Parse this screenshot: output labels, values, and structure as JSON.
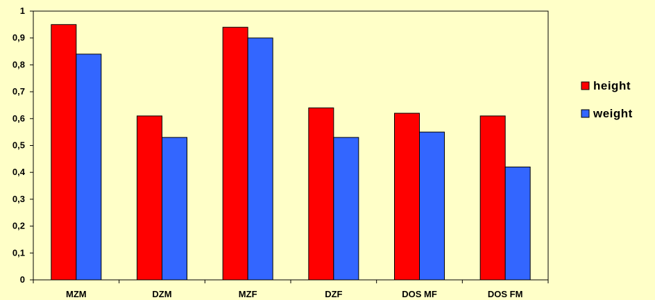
{
  "chart_data": {
    "type": "bar",
    "categories": [
      "MZM",
      "DZM",
      "MZF",
      "DZF",
      "DOS MF",
      "DOS FM"
    ],
    "series": [
      {
        "name": "height",
        "values": [
          0.95,
          0.61,
          0.94,
          0.64,
          0.62,
          0.61
        ],
        "color": "#FF0000"
      },
      {
        "name": "weight",
        "values": [
          0.84,
          0.53,
          0.9,
          0.53,
          0.55,
          0.42
        ],
        "color": "#3366FF"
      }
    ],
    "ylim": [
      0,
      1
    ],
    "yticks": [
      "0",
      "0,1",
      "0,2",
      "0,3",
      "0,4",
      "0,5",
      "0,6",
      "0,7",
      "0,8",
      "0,9",
      "1"
    ],
    "grid": false,
    "legend": "right",
    "plot_background": "#FFFFC8"
  }
}
